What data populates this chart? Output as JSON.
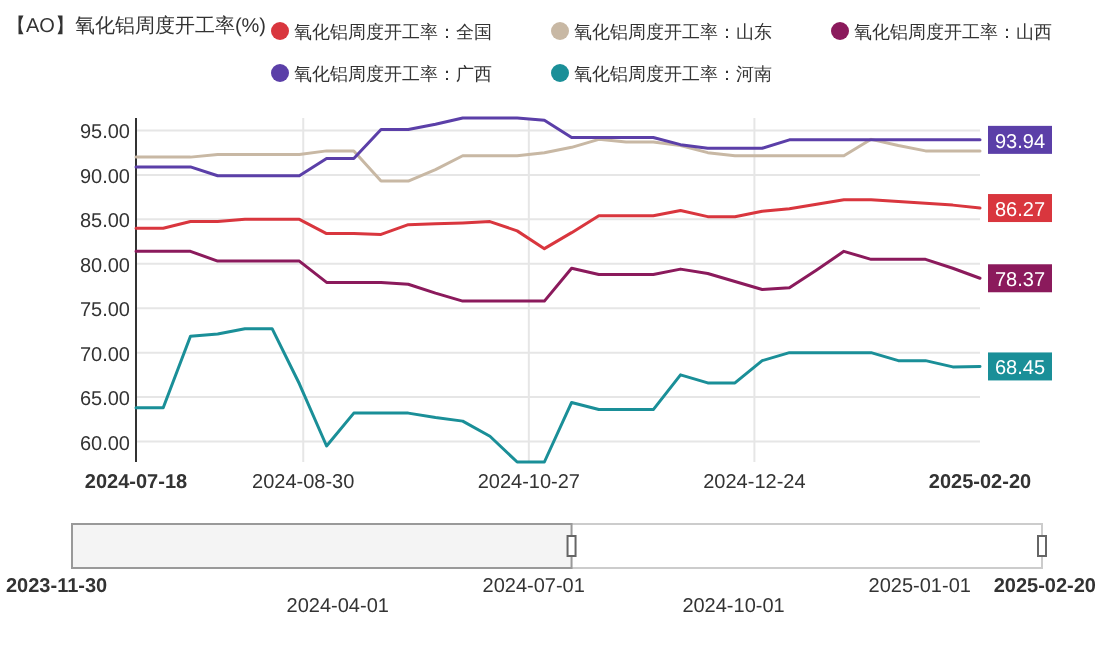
{
  "chart_data": [
    {
      "type": "line",
      "title": "【AO】氧化铝周度开工率(%)",
      "legend": "top",
      "grid": true,
      "marker": "none",
      "line_style": "solid",
      "x": [
        "2024-07-18",
        "2024-07-25",
        "2024-08-01",
        "2024-08-08",
        "2024-08-15",
        "2024-08-22",
        "2024-08-29",
        "2024-09-05",
        "2024-09-12",
        "2024-09-19",
        "2024-09-26",
        "2024-10-03",
        "2024-10-10",
        "2024-10-17",
        "2024-10-24",
        "2024-10-31",
        "2024-11-07",
        "2024-11-14",
        "2024-11-21",
        "2024-11-28",
        "2024-12-05",
        "2024-12-12",
        "2024-12-19",
        "2024-12-26",
        "2025-01-02",
        "2025-01-09",
        "2025-01-16",
        "2025-01-23",
        "2025-01-30",
        "2025-02-06",
        "2025-02-13",
        "2025-02-20"
      ],
      "xlim": [
        "2024-07-18",
        "2025-02-20"
      ],
      "xticks": [
        {
          "value": "2024-07-18",
          "label": "2024-07-18"
        },
        {
          "value": "2024-08-30",
          "label": "2024-08-30"
        },
        {
          "value": "2024-10-27",
          "label": "2024-10-27"
        },
        {
          "value": "2024-12-24",
          "label": "2024-12-24"
        },
        {
          "value": "2025-02-20",
          "label": "2025-02-20"
        }
      ],
      "ylim": [
        57.7,
        96.4
      ],
      "yticks": [
        {
          "value": 60,
          "label": "60.00"
        },
        {
          "value": 65,
          "label": "65.00"
        },
        {
          "value": 70,
          "label": "70.00"
        },
        {
          "value": 75,
          "label": "75.00"
        },
        {
          "value": 80,
          "label": "80.00"
        },
        {
          "value": 85,
          "label": "85.00"
        },
        {
          "value": 90,
          "label": "90.00"
        },
        {
          "value": 95,
          "label": "95.00"
        }
      ],
      "series": [
        {
          "name": "氧化铝周度开工率：全国",
          "color": "#d9363e",
          "values": [
            84.0,
            84.0,
            84.75,
            84.75,
            85.0,
            85.0,
            85.0,
            83.4,
            83.4,
            83.3,
            84.4,
            84.5,
            84.6,
            84.75,
            83.7,
            81.7,
            83.5,
            85.4,
            85.4,
            85.4,
            86.0,
            85.3,
            85.3,
            85.9,
            86.2,
            86.7,
            87.2,
            87.2,
            87.0,
            86.8,
            86.6,
            86.27
          ],
          "value_labels": [
            null,
            null,
            null,
            null,
            null,
            null,
            null,
            null,
            null,
            null,
            null,
            null,
            null,
            null,
            null,
            null,
            null,
            null,
            null,
            null,
            null,
            null,
            null,
            null,
            null,
            null,
            null,
            null,
            null,
            null,
            null,
            "86.27"
          ]
        },
        {
          "name": "氧化铝周度开工率：山东",
          "color": "#c8b8a4",
          "values": [
            92.0,
            92.0,
            92.0,
            92.3,
            92.3,
            92.3,
            92.3,
            92.7,
            92.7,
            89.3,
            89.3,
            90.6,
            92.15,
            92.15,
            92.15,
            92.5,
            93.1,
            94.0,
            93.7,
            93.7,
            93.3,
            92.5,
            92.15,
            92.15,
            92.15,
            92.15,
            92.15,
            94.0,
            93.3,
            92.7,
            92.7,
            92.7
          ]
        },
        {
          "name": "氧化铝周度开工率：山西",
          "color": "#8b1a5c",
          "values": [
            81.4,
            81.4,
            81.4,
            80.3,
            80.3,
            80.3,
            80.3,
            77.9,
            77.9,
            77.9,
            77.7,
            76.7,
            75.8,
            75.8,
            75.8,
            75.8,
            79.5,
            78.8,
            78.8,
            78.8,
            79.4,
            78.9,
            78.0,
            77.1,
            77.3,
            79.3,
            81.4,
            80.5,
            80.5,
            80.5,
            79.5,
            78.37
          ],
          "value_labels": [
            null,
            null,
            null,
            null,
            null,
            null,
            null,
            null,
            null,
            null,
            null,
            null,
            null,
            null,
            null,
            null,
            null,
            null,
            null,
            null,
            null,
            null,
            null,
            null,
            null,
            null,
            null,
            null,
            null,
            null,
            null,
            "78.37"
          ]
        },
        {
          "name": "氧化铝周度开工率：广西",
          "color": "#5b3fa8",
          "values": [
            90.9,
            90.9,
            90.9,
            89.9,
            89.9,
            89.9,
            89.9,
            91.85,
            91.85,
            95.1,
            95.1,
            95.7,
            96.4,
            96.4,
            96.4,
            96.15,
            94.2,
            94.2,
            94.2,
            94.2,
            93.4,
            93.0,
            93.0,
            93.0,
            93.94,
            93.94,
            93.94,
            93.94,
            93.94,
            93.94,
            93.94,
            93.94
          ],
          "value_labels": [
            null,
            null,
            null,
            null,
            null,
            null,
            null,
            null,
            null,
            null,
            null,
            null,
            null,
            null,
            null,
            null,
            null,
            null,
            null,
            null,
            null,
            null,
            null,
            null,
            null,
            null,
            null,
            null,
            null,
            null,
            null,
            "93.94"
          ]
        },
        {
          "name": "氧化铝周度开工率：河南",
          "color": "#1a8f98",
          "values": [
            63.8,
            63.8,
            71.85,
            72.1,
            72.7,
            72.7,
            66.5,
            59.5,
            63.2,
            63.2,
            63.2,
            62.7,
            62.3,
            60.6,
            57.7,
            57.7,
            64.4,
            63.6,
            63.6,
            63.6,
            67.5,
            66.6,
            66.6,
            69.1,
            70.0,
            70.0,
            70.0,
            70.0,
            69.1,
            69.1,
            68.4,
            68.45
          ],
          "value_labels": [
            null,
            null,
            null,
            null,
            null,
            null,
            null,
            null,
            null,
            null,
            null,
            null,
            null,
            null,
            null,
            null,
            null,
            null,
            null,
            null,
            null,
            null,
            null,
            null,
            null,
            null,
            null,
            null,
            null,
            null,
            null,
            "68.45"
          ]
        }
      ]
    },
    {
      "type": "other",
      "annotations": [
        "2023-11-30",
        "2024-04-01",
        "2024-07-01",
        "2024-10-01",
        "2025-01-01",
        "2025-02-20"
      ]
    }
  ]
}
